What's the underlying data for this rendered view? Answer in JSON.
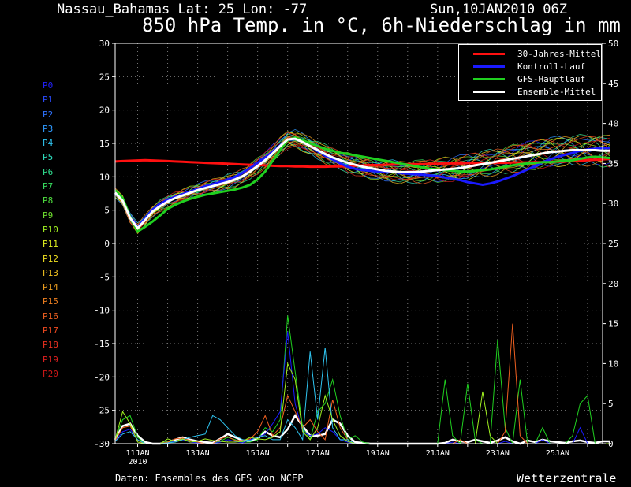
{
  "header": {
    "location": "Nassau_Bahamas  Lat: 25 Lon: -77",
    "date": "Sun,10JAN2010 06Z",
    "title": "850 hPa Temp. in °C, 6h-Niederschlag in mm"
  },
  "footer": {
    "source": "Daten: Ensembles des GFS von NCEP",
    "brand": "Wetterzentrale"
  },
  "members": [
    "P0",
    "P1",
    "P2",
    "P3",
    "P4",
    "P5",
    "P6",
    "P7",
    "P8",
    "P9",
    "P10",
    "P11",
    "P12",
    "P13",
    "P14",
    "P15",
    "P16",
    "P17",
    "P18",
    "P19",
    "P20"
  ],
  "member_colors": [
    "#2222ff",
    "#2a4cff",
    "#2f73ff",
    "#2f9aff",
    "#2fc4f0",
    "#2fe0c0",
    "#30e090",
    "#38e060",
    "#50e040",
    "#70e030",
    "#a0f020",
    "#e0f020",
    "#f0e020",
    "#f0c020",
    "#f0a020",
    "#f08020",
    "#f06020",
    "#f04a20",
    "#e83020",
    "#e02020",
    "#d01818"
  ],
  "legend": [
    {
      "label": "30-Jahres-Mittel",
      "color": "#ff1010"
    },
    {
      "label": "Kontroll-Lauf",
      "color": "#1a1aff"
    },
    {
      "label": "GFS-Hauptlauf",
      "color": "#20d020"
    },
    {
      "label": "Ensemble-Mittel",
      "color": "#ffffff"
    }
  ],
  "chart_data": {
    "type": "line",
    "left_axis": {
      "ylim": [
        -30,
        30
      ],
      "ticks": [
        "30",
        "25",
        "20",
        "15",
        "10",
        "5",
        "0",
        "-5",
        "-10",
        "-15",
        "-20",
        "-25",
        "-30"
      ]
    },
    "right_axis": {
      "ylim": [
        0,
        50
      ],
      "ticks": [
        "50",
        "45",
        "40",
        "35",
        "30",
        "25",
        "20",
        "15",
        "10",
        "5",
        "0"
      ]
    },
    "x_axis": {
      "start": "10JAN2010 06Z",
      "end": "26JAN2010 12Z",
      "step_hours": 6
    },
    "x_tick_labels": [
      {
        "label": "11JAN",
        "sub": "2010",
        "date": "2010-01-11"
      },
      {
        "label": "13JAN",
        "sub": "",
        "date": "2010-01-13"
      },
      {
        "label": "15JAN",
        "sub": "",
        "date": "2010-01-15"
      },
      {
        "label": "17JAN",
        "sub": "",
        "date": "2010-01-17"
      },
      {
        "label": "19JAN",
        "sub": "",
        "date": "2010-01-19"
      },
      {
        "label": "21JAN",
        "sub": "",
        "date": "2010-01-21"
      },
      {
        "label": "23JAN",
        "sub": "",
        "date": "2010-01-23"
      },
      {
        "label": "25JAN",
        "sub": "",
        "date": "2010-01-25"
      }
    ],
    "temperature_series": [
      {
        "name": "30-Jahres-Mittel",
        "values": [
          12.3,
          12.35,
          12.4,
          12.45,
          12.5,
          12.45,
          12.4,
          12.35,
          12.3,
          12.25,
          12.2,
          12.15,
          12.1,
          12.05,
          12.0,
          11.95,
          11.9,
          11.85,
          11.8,
          11.75,
          11.7,
          11.65,
          11.6,
          11.6,
          11.55,
          11.55,
          11.5,
          11.5,
          11.5,
          11.55,
          11.55,
          11.6,
          11.65,
          11.7,
          11.75,
          11.75,
          11.8,
          11.85,
          11.85,
          11.9,
          11.9,
          11.9,
          11.95,
          11.95,
          12.0,
          12.0,
          12.0,
          12.05,
          12.05,
          12.1,
          12.1,
          12.1,
          12.1,
          12.15,
          12.15,
          12.15,
          12.2,
          12.2,
          12.2,
          12.25,
          12.3,
          12.35,
          12.4,
          12.5,
          12.55,
          12.6,
          12.7
        ]
      },
      {
        "name": "Kontroll-Lauf",
        "values": [
          7.5,
          6.5,
          4.2,
          2.4,
          3.8,
          5.1,
          5.9,
          6.6,
          7.0,
          7.4,
          7.8,
          8.2,
          8.6,
          8.9,
          9.2,
          9.6,
          10.0,
          10.6,
          11.3,
          12.1,
          12.9,
          13.8,
          14.7,
          15.5,
          15.7,
          15.2,
          14.6,
          13.9,
          13.2,
          12.6,
          12.0,
          11.5,
          11.2,
          11.0,
          10.9,
          10.8,
          10.7,
          10.7,
          10.6,
          10.5,
          10.4,
          10.3,
          10.2,
          10.1,
          9.9,
          9.7,
          9.5,
          9.2,
          9.0,
          8.8,
          9.0,
          9.3,
          9.7,
          10.1,
          10.6,
          11.1,
          11.6,
          12.2,
          12.6,
          13.0,
          13.3,
          13.6,
          13.9,
          14.1,
          14.2,
          14.3,
          14.3
        ]
      },
      {
        "name": "GFS-Hauptlauf",
        "values": [
          8.0,
          6.8,
          4.0,
          1.8,
          2.5,
          3.3,
          4.2,
          5.2,
          5.8,
          6.3,
          6.7,
          7.0,
          7.3,
          7.5,
          7.7,
          7.9,
          8.1,
          8.4,
          8.8,
          9.6,
          10.8,
          12.4,
          14.0,
          15.5,
          15.9,
          15.5,
          15.0,
          14.6,
          14.2,
          13.9,
          13.6,
          13.4,
          13.2,
          13.0,
          12.8,
          12.6,
          12.4,
          12.2,
          12.0,
          11.8,
          11.6,
          11.4,
          11.2,
          11.1,
          11.0,
          10.9,
          10.8,
          10.8,
          10.9,
          11.0,
          11.1,
          11.3,
          11.5,
          11.7,
          11.9,
          12.0,
          12.1,
          12.2,
          12.2,
          12.3,
          12.4,
          12.5,
          12.7,
          12.9,
          13.0,
          12.9,
          12.8
        ]
      },
      {
        "name": "Ensemble-Mittel",
        "values": [
          7.6,
          6.4,
          3.8,
          2.3,
          3.5,
          4.8,
          5.6,
          6.3,
          6.8,
          7.2,
          7.6,
          8.0,
          8.3,
          8.6,
          8.9,
          9.2,
          9.6,
          10.1,
          10.8,
          11.6,
          12.5,
          13.5,
          14.6,
          15.6,
          15.7,
          15.2,
          14.6,
          14.0,
          13.4,
          12.9,
          12.5,
          12.1,
          11.8,
          11.5,
          11.3,
          11.1,
          10.9,
          10.8,
          10.7,
          10.7,
          10.7,
          10.8,
          10.9,
          11.0,
          11.1,
          11.2,
          11.3,
          11.5,
          11.7,
          11.9,
          12.1,
          12.3,
          12.5,
          12.7,
          12.9,
          13.1,
          13.3,
          13.5,
          13.7,
          13.8,
          13.9,
          14.0,
          14.0,
          14.0,
          14.0,
          13.9,
          13.9
        ]
      }
    ],
    "precipitation_series": [
      {
        "name": "Ensemble-Mittel",
        "values": [
          0.5,
          2.2,
          2.5,
          1.0,
          0.2,
          0.0,
          0.0,
          0.2,
          0.5,
          0.8,
          0.5,
          0.3,
          0.2,
          0.1,
          0.6,
          1.2,
          0.8,
          0.4,
          0.3,
          0.6,
          1.5,
          1.0,
          0.8,
          1.8,
          3.5,
          2.2,
          1.0,
          1.0,
          1.2,
          3.0,
          2.5,
          1.0,
          0.2,
          0.1,
          0.0,
          0.0,
          0.0,
          0.0,
          0.0,
          0.0,
          0.0,
          0.0,
          0.0,
          0.0,
          0.1,
          0.5,
          0.3,
          0.2,
          0.5,
          0.3,
          0.1,
          0.4,
          0.8,
          0.3,
          0.0,
          0.4,
          0.2,
          0.5,
          0.3,
          0.2,
          0.1,
          0.3,
          0.4,
          0.2,
          0.1,
          0.3,
          0.3
        ]
      },
      {
        "name": "GFS-Hauptlauf",
        "values": [
          0.6,
          3.0,
          3.5,
          0.8,
          0.0,
          0.0,
          0.0,
          0.3,
          0.2,
          0.5,
          0.4,
          0.1,
          0.0,
          0.0,
          0.3,
          0.8,
          0.5,
          0.2,
          0.2,
          0.5,
          2.0,
          1.5,
          3.0,
          16.0,
          9.0,
          2.0,
          0.5,
          4.0,
          5.0,
          8.0,
          3.5,
          0.5,
          1.0,
          0.2,
          0.0,
          0.0,
          0.0,
          0.0,
          0.0,
          0.0,
          0.0,
          0.0,
          0.0,
          0.0,
          8.0,
          1.0,
          0.0,
          7.5,
          0.5,
          0.0,
          0.0,
          13.0,
          2.0,
          0.0,
          8.0,
          0.0,
          0.0,
          2.0,
          0.0,
          0.0,
          0.0,
          1.0,
          5.0,
          6.0,
          0.0,
          0.0,
          0.0
        ]
      },
      {
        "name": "Kontroll-Lauf",
        "values": [
          0.3,
          1.5,
          1.8,
          0.5,
          0.0,
          0.0,
          0.0,
          0.1,
          0.3,
          0.5,
          0.2,
          0.1,
          0.0,
          0.0,
          0.2,
          0.5,
          0.3,
          0.1,
          0.5,
          0.8,
          1.2,
          2.5,
          4.0,
          14.0,
          5.0,
          1.5,
          1.0,
          1.2,
          2.0,
          1.5,
          0.5,
          0.2,
          0.0,
          0.0,
          0.0,
          0.0,
          0.0,
          0.0,
          0.0,
          0.0,
          0.0,
          0.0,
          0.0,
          0.0,
          0.0,
          0.2,
          0.0,
          0.0,
          0.0,
          0.0,
          0.0,
          0.0,
          0.3,
          0.0,
          0.0,
          0.0,
          0.0,
          0.5,
          0.0,
          0.0,
          0.0,
          0.0,
          2.0,
          0.0,
          0.0,
          0.0,
          0.0
        ]
      },
      {
        "name": "P16",
        "values": [
          0.4,
          2.0,
          2.2,
          0.4,
          0.0,
          0.0,
          0.0,
          0.2,
          0.6,
          0.7,
          0.4,
          0.2,
          0.0,
          0.0,
          0.6,
          0.9,
          0.4,
          0.4,
          0.6,
          1.5,
          3.5,
          1.0,
          2.0,
          6.0,
          4.0,
          2.0,
          3.0,
          1.5,
          0.5,
          5.5,
          2.0,
          0.5,
          0.0,
          0.0,
          0.0,
          0.0,
          0.0,
          0.0,
          0.0,
          0.0,
          0.0,
          0.0,
          0.0,
          0.0,
          0.0,
          0.0,
          0.5,
          0.0,
          0.0,
          0.0,
          0.0,
          0.0,
          1.5,
          15.0,
          1.0,
          0.0,
          0.0,
          0.0,
          0.0,
          0.0,
          0.0,
          0.0,
          0.0,
          0.0,
          0.0,
          0.0,
          0.0
        ]
      },
      {
        "name": "P4",
        "values": [
          0.3,
          1.2,
          1.5,
          0.5,
          0.0,
          0.0,
          0.0,
          0.1,
          0.2,
          0.5,
          0.8,
          1.0,
          1.2,
          3.5,
          3.0,
          2.0,
          1.0,
          0.5,
          0.4,
          0.8,
          1.0,
          0.5,
          0.5,
          3.0,
          2.0,
          0.5,
          11.5,
          3.0,
          12.0,
          2.0,
          0.5,
          0.5,
          0.0,
          0.0,
          0.0,
          0.0,
          0.0,
          0.0,
          0.0,
          0.0,
          0.0,
          0.0,
          0.0,
          0.0,
          0.0,
          0.0,
          0.0,
          0.0,
          0.0,
          0.0,
          0.0,
          0.0,
          0.0,
          0.0,
          0.0,
          0.0,
          0.0,
          0.0,
          0.0,
          0.0,
          0.0,
          0.0,
          0.0,
          0.0,
          0.0,
          0.0,
          0.0
        ]
      },
      {
        "name": "P10",
        "values": [
          0.5,
          4.0,
          2.5,
          0.2,
          0.0,
          0.0,
          0.0,
          0.6,
          0.3,
          0.6,
          0.2,
          0.3,
          0.6,
          0.4,
          0.3,
          0.2,
          0.2,
          0.3,
          0.8,
          0.6,
          0.5,
          0.8,
          1.5,
          10.0,
          8.0,
          1.5,
          0.5,
          2.0,
          6.0,
          3.0,
          1.0,
          0.3,
          0.0,
          0.0,
          0.0,
          0.0,
          0.0,
          0.0,
          0.0,
          0.0,
          0.0,
          0.0,
          0.0,
          0.0,
          0.0,
          0.0,
          0.0,
          0.0,
          0.0,
          6.5,
          1.0,
          0.0,
          0.0,
          0.0,
          0.0,
          0.0,
          0.0,
          0.0,
          0.0,
          0.0,
          0.0,
          0.0,
          0.0,
          0.0,
          0.0,
          0.0,
          0.0
        ]
      }
    ]
  }
}
